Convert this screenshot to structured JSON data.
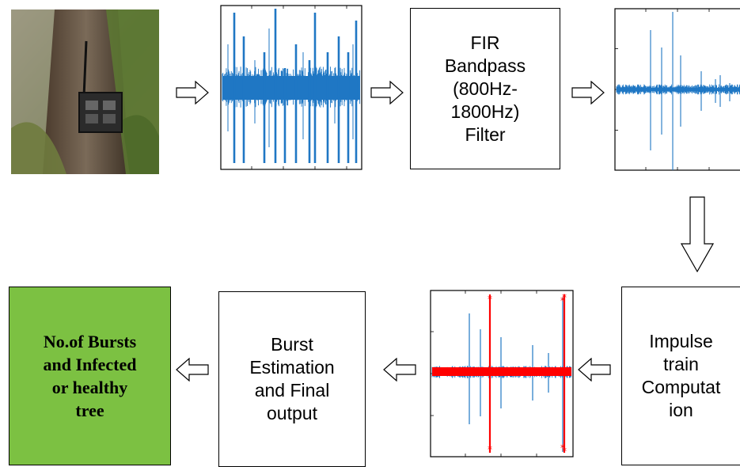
{
  "colors": {
    "signal": "#1f77c4",
    "impulse": "#ff0000",
    "output_fill": "#7cc142",
    "border": "#000000"
  },
  "stages": {
    "photo": {
      "icon": "tree-sensor-photo"
    },
    "raw_signal": {
      "icon": "raw-waveform-plot"
    },
    "filter": {
      "label": "FIR\nBandpass\n(800Hz-\n1800Hz)\nFilter"
    },
    "filtered_signal": {
      "icon": "filtered-waveform-plot"
    },
    "impulse": {
      "label": "Impulse\ntrain\nComputat\nion"
    },
    "impulse_signal": {
      "icon": "impulse-train-plot"
    },
    "burst": {
      "label": "Burst\nEstimation\nand Final\noutput"
    },
    "output": {
      "label": "No.of Bursts\nand Infected\nor healthy\ntree"
    }
  }
}
